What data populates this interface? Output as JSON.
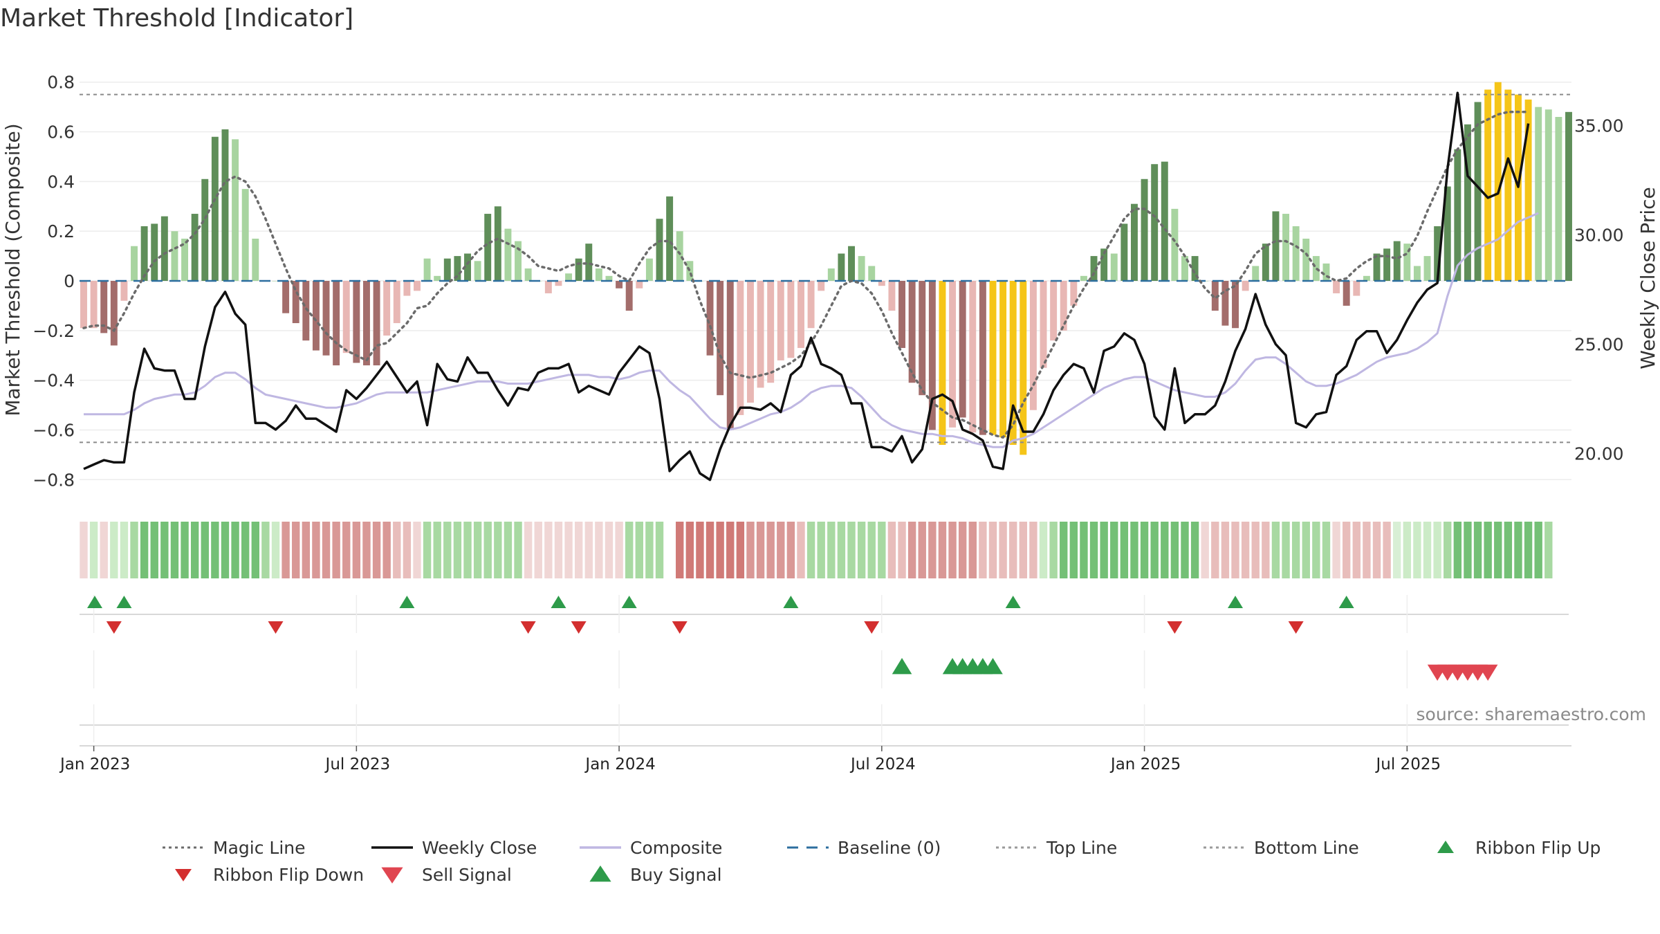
{
  "chart_data": {
    "type": "bar",
    "title": "Market Threshold [Indicator]",
    "ylabel_left": "Market Threshold (Composite)",
    "ylabel_right": "Weekly Close Price",
    "source": "source: sharemaestro.com",
    "ylim_left": [
      -0.88,
      0.88
    ],
    "ylim_right": [
      17.9,
      37.9
    ],
    "yticks_left": [
      "0.8",
      "0.6",
      "0.4",
      "0.2",
      "0",
      "−0.2",
      "−0.4",
      "−0.6",
      "−0.8"
    ],
    "yticks_left_values": [
      0.8,
      0.6,
      0.4,
      0.2,
      0,
      -0.2,
      -0.4,
      -0.6,
      -0.8
    ],
    "yticks_right": [
      "35.00",
      "30.00",
      "25.00",
      "20.00"
    ],
    "yticks_right_values": [
      35,
      30,
      25,
      20
    ],
    "xticks": [
      "Jan 2023",
      "Jul 2023",
      "Jan 2024",
      "Jul 2024",
      "Jan 2025",
      "Jul 2025"
    ],
    "xtick_weeks": [
      1,
      27,
      53,
      79,
      105,
      131
    ],
    "top_line": 0.75,
    "bottom_line": -0.65,
    "composite_bars": [
      -0.19,
      -0.19,
      -0.21,
      -0.26,
      -0.08,
      0.14,
      0.22,
      0.23,
      0.26,
      0.2,
      0.17,
      0.27,
      0.41,
      0.58,
      0.61,
      0.57,
      0.37,
      0.17,
      0,
      0,
      -0.13,
      -0.17,
      -0.24,
      -0.28,
      -0.3,
      -0.34,
      -0.29,
      -0.33,
      -0.34,
      -0.34,
      -0.22,
      -0.17,
      -0.06,
      -0.04,
      0.09,
      0.02,
      0.09,
      0.1,
      0.11,
      0.08,
      0.27,
      0.3,
      0.21,
      0.16,
      0.05,
      0,
      -0.05,
      -0.02,
      0.03,
      0.09,
      0.15,
      0.05,
      0.02,
      -0.03,
      -0.12,
      -0.03,
      0.09,
      0.25,
      0.34,
      0.2,
      0.08,
      0,
      -0.3,
      -0.46,
      -0.6,
      -0.54,
      -0.49,
      -0.43,
      -0.41,
      -0.32,
      -0.31,
      -0.27,
      -0.19,
      -0.04,
      0.05,
      0.11,
      0.14,
      0.1,
      0.06,
      -0.02,
      -0.12,
      -0.27,
      -0.41,
      -0.46,
      -0.6,
      -0.66,
      -0.59,
      -0.55,
      -0.61,
      -0.62,
      -0.62,
      -0.63,
      -0.66,
      -0.7,
      -0.52,
      -0.35,
      -0.24,
      -0.2,
      -0.1,
      0.02,
      0.1,
      0.13,
      0.11,
      0.23,
      0.31,
      0.41,
      0.47,
      0.48,
      0.29,
      0.1,
      0.1,
      0,
      -0.12,
      -0.18,
      -0.19,
      -0.04,
      0.06,
      0.15,
      0.28,
      0.27,
      0.22,
      0.17,
      0.1,
      0.07,
      -0.05,
      -0.1,
      -0.06,
      0.02,
      0.11,
      0.13,
      0.16,
      0.15,
      0.06,
      0.1,
      0.22,
      0.38,
      0.53,
      0.63,
      0.72,
      0.77,
      0.8,
      0.77,
      0.75,
      0.73,
      0.7,
      0.69,
      0.66,
      0.68
    ],
    "bar_colors": [
      "#e8b7b4",
      "#e8b7b4",
      "#a36d6b",
      "#a36d6b",
      "#e8b7b4",
      "#a8d4a0",
      "#5f8e59",
      "#5f8e59",
      "#5f8e59",
      "#a8d4a0",
      "#a8d4a0",
      "#5f8e59",
      "#5f8e59",
      "#5f8e59",
      "#5f8e59",
      "#a8d4a0",
      "#a8d4a0",
      "#a8d4a0",
      "#a8d4a0",
      "#a8d4a0",
      "#a36d6b",
      "#a36d6b",
      "#a36d6b",
      "#a36d6b",
      "#a36d6b",
      "#a36d6b",
      "#e8b7b4",
      "#a36d6b",
      "#a36d6b",
      "#a36d6b",
      "#e8b7b4",
      "#e8b7b4",
      "#e8b7b4",
      "#e8b7b4",
      "#a8d4a0",
      "#a8d4a0",
      "#5f8e59",
      "#5f8e59",
      "#5f8e59",
      "#a8d4a0",
      "#5f8e59",
      "#5f8e59",
      "#a8d4a0",
      "#a8d4a0",
      "#a8d4a0",
      "#a8d4a0",
      "#e8b7b4",
      "#e8b7b4",
      "#a8d4a0",
      "#5f8e59",
      "#5f8e59",
      "#a8d4a0",
      "#a8d4a0",
      "#a36d6b",
      "#a36d6b",
      "#e8b7b4",
      "#a8d4a0",
      "#5f8e59",
      "#5f8e59",
      "#a8d4a0",
      "#a8d4a0",
      "#a8d4a0",
      "#a36d6b",
      "#a36d6b",
      "#a36d6b",
      "#e8b7b4",
      "#e8b7b4",
      "#e8b7b4",
      "#e8b7b4",
      "#e8b7b4",
      "#e8b7b4",
      "#e8b7b4",
      "#e8b7b4",
      "#e8b7b4",
      "#a8d4a0",
      "#5f8e59",
      "#5f8e59",
      "#a8d4a0",
      "#a8d4a0",
      "#e8b7b4",
      "#e8b7b4",
      "#a36d6b",
      "#a36d6b",
      "#a36d6b",
      "#a36d6b",
      "#f5c518",
      "#e8b7b4",
      "#a36d6b",
      "#e8b7b4",
      "#a36d6b",
      "#f5c518",
      "#f5c518",
      "#f5c518",
      "#f5c518",
      "#e8b7b4",
      "#e8b7b4",
      "#e8b7b4",
      "#e8b7b4",
      "#e8b7b4",
      "#a8d4a0",
      "#5f8e59",
      "#5f8e59",
      "#a8d4a0",
      "#5f8e59",
      "#5f8e59",
      "#5f8e59",
      "#5f8e59",
      "#5f8e59",
      "#a8d4a0",
      "#a8d4a0",
      "#5f8e59",
      "#a8d4a0",
      "#a36d6b",
      "#a36d6b",
      "#a36d6b",
      "#e8b7b4",
      "#a8d4a0",
      "#5f8e59",
      "#5f8e59",
      "#a8d4a0",
      "#a8d4a0",
      "#a8d4a0",
      "#a8d4a0",
      "#a8d4a0",
      "#e8b7b4",
      "#a36d6b",
      "#e8b7b4",
      "#a8d4a0",
      "#5f8e59",
      "#5f8e59",
      "#5f8e59",
      "#a8d4a0",
      "#a8d4a0",
      "#a8d4a0",
      "#5f8e59",
      "#5f8e59",
      "#5f8e59",
      "#5f8e59",
      "#5f8e59",
      "#f5c518",
      "#f5c518",
      "#f5c518",
      "#f5c518",
      "#f5c518",
      "#a8d4a0",
      "#a8d4a0",
      "#a8d4a0",
      "#5f8e59"
    ],
    "weekly_close": [
      19.3,
      19.5,
      19.7,
      19.6,
      19.6,
      22.8,
      24.8,
      23.9,
      23.8,
      23.8,
      22.5,
      22.5,
      24.9,
      26.7,
      27.4,
      26.4,
      25.9,
      21.4,
      21.4,
      21.1,
      21.5,
      22.2,
      21.6,
      21.6,
      21.3,
      21,
      22.9,
      22.5,
      23,
      23.6,
      24.2,
      23.5,
      22.8,
      23.3,
      21.3,
      24.1,
      23.4,
      23.3,
      24.4,
      23.7,
      23.7,
      22.9,
      22.2,
      23,
      22.9,
      23.7,
      23.9,
      23.9,
      24.1,
      22.8,
      23.1,
      22.9,
      22.7,
      23.7,
      24.3,
      24.9,
      24.6,
      22.5,
      19.2,
      19.7,
      20.1,
      19.1,
      18.8,
      20.2,
      21.3,
      22.1,
      22.1,
      22,
      22.3,
      21.9,
      23.6,
      24,
      25.3,
      24.1,
      23.9,
      23.6,
      22.3,
      22.3,
      20.3,
      20.3,
      20.1,
      20.8,
      19.6,
      20.2,
      22.5,
      22.7,
      22.4,
      21.1,
      20.9,
      20.6,
      19.4,
      19.3,
      22.2,
      21,
      21,
      21.8,
      22.9,
      23.6,
      24.1,
      23.9,
      22.8,
      24.7,
      24.9,
      25.5,
      25.2,
      24.1,
      21.7,
      21.1,
      23.9,
      21.4,
      21.8,
      21.8,
      22.2,
      23.3,
      24.7,
      25.7,
      27.3,
      25.9,
      25,
      24.5,
      21.4,
      21.2,
      21.8,
      21.9,
      23.6,
      24,
      25.2,
      25.6,
      25.6,
      24.6,
      25.2,
      26.1,
      26.9,
      27.5,
      27.8,
      33,
      36.5,
      32.7,
      32.2,
      31.7,
      31.9,
      33.5,
      32.2,
      35.1
    ],
    "composite_line": [
      21.8,
      21.8,
      21.8,
      21.8,
      21.8,
      22,
      22.3,
      22.5,
      22.6,
      22.7,
      22.7,
      22.8,
      23.1,
      23.5,
      23.7,
      23.7,
      23.4,
      23,
      22.7,
      22.6,
      22.5,
      22.4,
      22.3,
      22.2,
      22.1,
      22.1,
      22.2,
      22.3,
      22.5,
      22.7,
      22.8,
      22.8,
      22.8,
      22.8,
      22.8,
      22.9,
      23,
      23.1,
      23.2,
      23.3,
      23.3,
      23.3,
      23.2,
      23.2,
      23.2,
      23.3,
      23.4,
      23.5,
      23.6,
      23.6,
      23.6,
      23.5,
      23.5,
      23.4,
      23.5,
      23.7,
      23.8,
      23.8,
      23.3,
      22.9,
      22.6,
      22.1,
      21.6,
      21.2,
      21.1,
      21.2,
      21.4,
      21.6,
      21.8,
      21.9,
      22.1,
      22.4,
      22.8,
      23,
      23.1,
      23.1,
      23,
      22.6,
      22.1,
      21.6,
      21.3,
      21.1,
      21,
      20.9,
      20.9,
      20.8,
      20.8,
      20.7,
      20.5,
      20.4,
      20.3,
      20.3,
      20.6,
      20.7,
      20.9,
      21.2,
      21.5,
      21.8,
      22.1,
      22.4,
      22.7,
      23,
      23.2,
      23.4,
      23.5,
      23.5,
      23.3,
      23.1,
      22.9,
      22.8,
      22.7,
      22.6,
      22.6,
      22.8,
      23.2,
      23.8,
      24.3,
      24.4,
      24.4,
      24.1,
      23.7,
      23.3,
      23.1,
      23.1,
      23.2,
      23.4,
      23.6,
      23.9,
      24.2,
      24.4,
      24.5,
      24.6,
      24.8,
      25.1,
      25.5,
      27.2,
      28.6,
      29.1,
      29.4,
      29.6,
      29.8,
      30.2,
      30.6,
      30.8,
      31
    ],
    "magic_line": [
      -0.19,
      -0.18,
      -0.18,
      -0.2,
      -0.13,
      -0.05,
      0.02,
      0.08,
      0.11,
      0.13,
      0.15,
      0.19,
      0.25,
      0.33,
      0.4,
      0.42,
      0.4,
      0.34,
      0.25,
      0.15,
      0.05,
      -0.04,
      -0.11,
      -0.16,
      -0.21,
      -0.25,
      -0.28,
      -0.3,
      -0.32,
      -0.26,
      -0.25,
      -0.21,
      -0.17,
      -0.11,
      -0.1,
      -0.05,
      -0.01,
      0.02,
      0.07,
      0.12,
      0.15,
      0.17,
      0.15,
      0.13,
      0.1,
      0.06,
      0.05,
      0.04,
      0.06,
      0.07,
      0.07,
      0.06,
      0.05,
      0.02,
      0,
      0.07,
      0.13,
      0.16,
      0.16,
      0.11,
      0.04,
      -0.08,
      -0.18,
      -0.3,
      -0.37,
      -0.38,
      -0.39,
      -0.38,
      -0.37,
      -0.35,
      -0.33,
      -0.3,
      -0.25,
      -0.18,
      -0.1,
      -0.02,
      0,
      -0.01,
      -0.05,
      -0.12,
      -0.21,
      -0.29,
      -0.37,
      -0.44,
      -0.49,
      -0.52,
      -0.55,
      -0.56,
      -0.58,
      -0.6,
      -0.62,
      -0.63,
      -0.58,
      -0.49,
      -0.42,
      -0.34,
      -0.26,
      -0.18,
      -0.1,
      -0.03,
      0.03,
      0.11,
      0.18,
      0.25,
      0.29,
      0.29,
      0.26,
      0.21,
      0.16,
      0.1,
      0.03,
      -0.03,
      -0.07,
      -0.04,
      -0.02,
      0.04,
      0.11,
      0.14,
      0.16,
      0.16,
      0.14,
      0.11,
      0.05,
      0.02,
      0,
      0.01,
      0.05,
      0.08,
      0.1,
      0.1,
      0.09,
      0.11,
      0.18,
      0.28,
      0.37,
      0.46,
      0.53,
      0.58,
      0.63,
      0.65,
      0.67,
      0.68,
      0.68,
      0.68
    ],
    "ribbon_colors": [
      "#f0d6d5",
      "#ccebc7",
      "#f0d6d5",
      "#ccebc7",
      "#ccebc7",
      "#a8d9a2",
      "#74c076",
      "#74c076",
      "#74c076",
      "#74c076",
      "#74c076",
      "#74c076",
      "#74c076",
      "#74c076",
      "#74c076",
      "#74c076",
      "#74c076",
      "#74c076",
      "#a8d9a2",
      "#ccebc7",
      "#d99896",
      "#d99896",
      "#d99896",
      "#d99896",
      "#d99896",
      "#d99896",
      "#d99896",
      "#d99896",
      "#d99896",
      "#d99896",
      "#d99896",
      "#e8bdbb",
      "#e8bdbb",
      "#f0d6d5",
      "#a8d9a2",
      "#a8d9a2",
      "#a8d9a2",
      "#a8d9a2",
      "#a8d9a2",
      "#a8d9a2",
      "#a8d9a2",
      "#a8d9a2",
      "#a8d9a2",
      "#a8d9a2",
      "#f0d6d5",
      "#f0d6d5",
      "#f0d6d5",
      "#f0d6d5",
      "#f0d6d5",
      "#f0d6d5",
      "#f0d6d5",
      "#f0d6d5",
      "#f0d6d5",
      "#f0d6d5",
      "#a8d9a2",
      "#a8d9a2",
      "#a8d9a2",
      "#a8d9a2",
      "#ffffff",
      "#d07a77",
      "#d07a77",
      "#d07a77",
      "#d07a77",
      "#d07a77",
      "#d07a77",
      "#d07a77",
      "#d99896",
      "#d99896",
      "#d99896",
      "#d99896",
      "#d99896",
      "#e8bdbb",
      "#a8d9a2",
      "#a8d9a2",
      "#a8d9a2",
      "#a8d9a2",
      "#a8d9a2",
      "#a8d9a2",
      "#a8d9a2",
      "#a8d9a2",
      "#e8bdbb",
      "#e8bdbb",
      "#d99896",
      "#d99896",
      "#d99896",
      "#d99896",
      "#d99896",
      "#d99896",
      "#d99896",
      "#e8bdbb",
      "#e8bdbb",
      "#e8bdbb",
      "#e8bdbb",
      "#e8bdbb",
      "#e8bdbb",
      "#ccebc7",
      "#a8d9a2",
      "#74c076",
      "#74c076",
      "#74c076",
      "#74c076",
      "#74c076",
      "#74c076",
      "#74c076",
      "#74c076",
      "#74c076",
      "#74c076",
      "#74c076",
      "#74c076",
      "#74c076",
      "#74c076",
      "#f0d6d5",
      "#e8bdbb",
      "#e8bdbb",
      "#e8bdbb",
      "#e8bdbb",
      "#e8bdbb",
      "#e8bdbb",
      "#a8d9a2",
      "#a8d9a2",
      "#a8d9a2",
      "#a8d9a2",
      "#a8d9a2",
      "#a8d9a2",
      "#f0d6d5",
      "#e8bdbb",
      "#e8bdbb",
      "#e8bdbb",
      "#e8bdbb",
      "#e8bdbb",
      "#d8efd5",
      "#ccebc7",
      "#ccebc7",
      "#ccebc7",
      "#ccebc7",
      "#a8d9a2",
      "#74c076",
      "#74c076",
      "#74c076",
      "#74c076",
      "#74c076",
      "#74c076",
      "#74c076",
      "#74c076",
      "#74c076",
      "#a8d9a2"
    ],
    "ribbon_flip_up_weeks": [
      0,
      4,
      32,
      47,
      54,
      70,
      92,
      114,
      125
    ],
    "ribbon_flip_down_weeks": [
      3,
      19,
      44,
      49,
      59,
      78,
      108,
      120
    ],
    "buy_signal_weeks": [
      81,
      86,
      87,
      88,
      89,
      90
    ],
    "sell_signal_weeks": [
      134,
      135,
      136,
      137,
      138,
      139
    ],
    "legend": [
      {
        "label": "Magic Line",
        "kind": "dotted",
        "color": "#6b6b6b"
      },
      {
        "label": "Weekly Close",
        "kind": "solid",
        "color": "#111111"
      },
      {
        "label": "Composite",
        "kind": "solid",
        "color": "#bfb7e2"
      },
      {
        "label": "Baseline (0)",
        "kind": "dashed",
        "color": "#2c6e9f"
      },
      {
        "label": "Top Line",
        "kind": "dotted",
        "color": "#9a9a9a"
      },
      {
        "label": "Bottom Line",
        "kind": "dotted",
        "color": "#9a9a9a"
      },
      {
        "label": "Ribbon Flip Up",
        "kind": "up",
        "color": "#2e9b4a"
      },
      {
        "label": "Ribbon Flip Down",
        "kind": "down",
        "color": "#d32f2f"
      },
      {
        "label": "Sell Signal",
        "kind": "down",
        "color": "#e04550"
      },
      {
        "label": "Buy Signal",
        "kind": "up",
        "color": "#2e9b4a"
      }
    ]
  }
}
